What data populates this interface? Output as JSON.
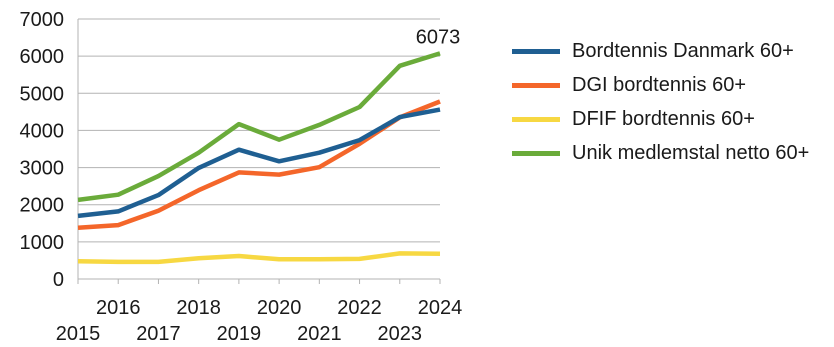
{
  "chart_data": {
    "type": "line",
    "x": [
      2015,
      2016,
      2017,
      2018,
      2019,
      2020,
      2021,
      2022,
      2023,
      2024
    ],
    "series": [
      {
        "name": "Bordtennis Danmark 60+",
        "color": "#1f5f92",
        "values": [
          1700,
          1820,
          2260,
          2990,
          3480,
          3170,
          3400,
          3740,
          4360,
          4560
        ]
      },
      {
        "name": "DGI bordtennis 60+",
        "color": "#f4662a",
        "values": [
          1380,
          1450,
          1840,
          2390,
          2870,
          2810,
          3010,
          3640,
          4350,
          4780
        ]
      },
      {
        "name": "DFIF bordtennis 60+",
        "color": "#f7d842",
        "values": [
          480,
          460,
          460,
          560,
          620,
          530,
          530,
          540,
          690,
          680
        ]
      },
      {
        "name": "Unik medlemstal netto 60+",
        "color": "#6aab3a",
        "values": [
          2130,
          2270,
          2770,
          3400,
          4170,
          3750,
          4150,
          4630,
          5740,
          6073
        ]
      }
    ],
    "ylim": [
      0,
      7000
    ],
    "yticks": [
      0,
      1000,
      2000,
      3000,
      4000,
      5000,
      6000,
      7000
    ],
    "grid": true,
    "legend_position": "right",
    "annotation": "6073"
  }
}
